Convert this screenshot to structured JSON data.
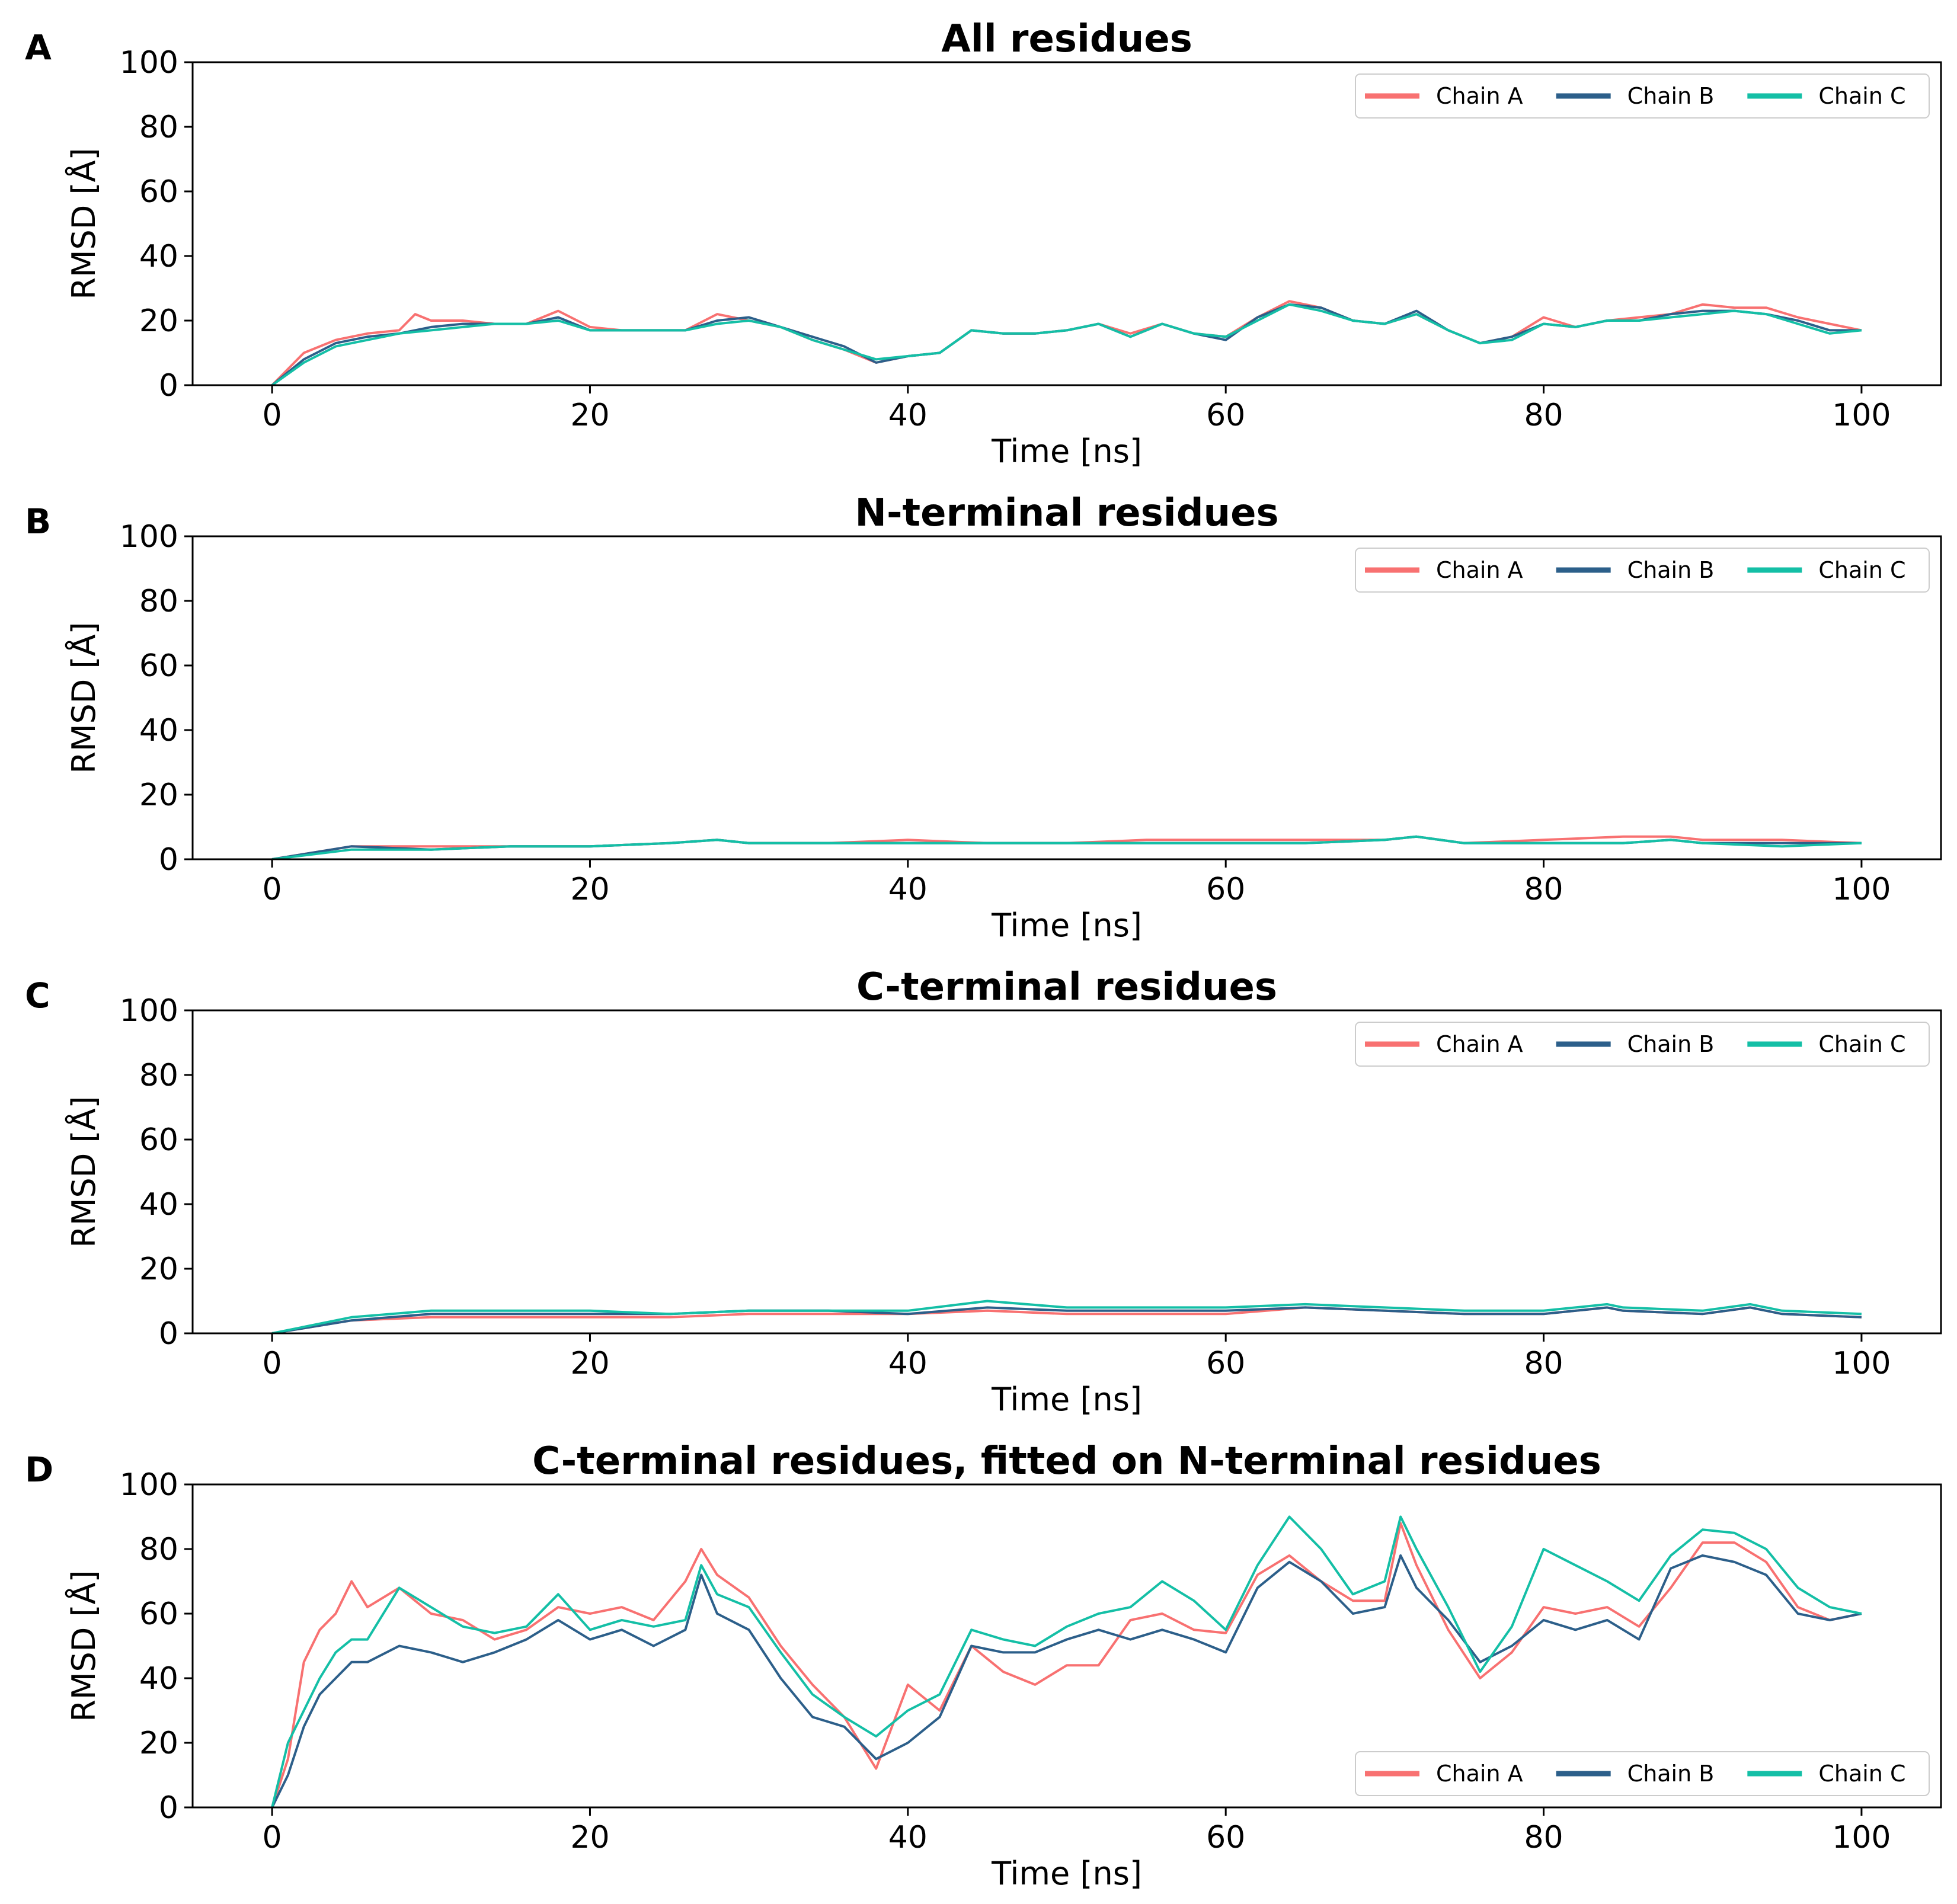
{
  "chart_data": [
    {
      "type": "line",
      "panel_label": "A",
      "title": "All residues",
      "xlabel": "Time [ns]",
      "ylabel": "RMSD [Å]",
      "xlim": [
        -5,
        105
      ],
      "ylim": [
        0,
        100
      ],
      "xticks": [
        "0",
        "20",
        "40",
        "60",
        "80",
        "100"
      ],
      "yticks": [
        "0",
        "20",
        "40",
        "60",
        "80",
        "100"
      ],
      "legend": {
        "position": "top-right",
        "entries": [
          "Chain A",
          "Chain B",
          "Chain C"
        ]
      },
      "series": [
        {
          "name": "Chain A",
          "color": "#F87171",
          "x": [
            0,
            2,
            4,
            6,
            8,
            9,
            10,
            12,
            14,
            16,
            18,
            20,
            22,
            24,
            26,
            28,
            30,
            32,
            34,
            36,
            38,
            40,
            42,
            44,
            46,
            48,
            50,
            52,
            54,
            56,
            58,
            60,
            62,
            64,
            66,
            68,
            70,
            72,
            74,
            76,
            78,
            80,
            82,
            84,
            86,
            88,
            90,
            92,
            94,
            96,
            98,
            100
          ],
          "y": [
            0,
            10,
            14,
            16,
            17,
            22,
            20,
            20,
            19,
            19,
            23,
            18,
            17,
            17,
            17,
            22,
            20,
            18,
            14,
            11,
            7,
            9,
            10,
            17,
            16,
            16,
            17,
            19,
            16,
            19,
            16,
            15,
            21,
            26,
            24,
            20,
            19,
            22,
            17,
            13,
            15,
            21,
            18,
            20,
            21,
            22,
            25,
            24,
            24,
            21,
            19,
            17
          ]
        },
        {
          "name": "Chain B",
          "color": "#2C5F8A",
          "x": [
            0,
            2,
            4,
            6,
            8,
            10,
            12,
            14,
            16,
            18,
            20,
            22,
            24,
            26,
            28,
            30,
            32,
            34,
            36,
            38,
            40,
            42,
            44,
            46,
            48,
            50,
            52,
            54,
            56,
            58,
            60,
            62,
            64,
            66,
            68,
            70,
            72,
            74,
            76,
            78,
            80,
            82,
            84,
            86,
            88,
            90,
            92,
            94,
            96,
            98,
            100
          ],
          "y": [
            0,
            8,
            13,
            15,
            16,
            18,
            19,
            19,
            19,
            21,
            17,
            17,
            17,
            17,
            20,
            21,
            18,
            15,
            12,
            7,
            9,
            10,
            17,
            16,
            16,
            17,
            19,
            15,
            19,
            16,
            14,
            21,
            25,
            24,
            20,
            19,
            23,
            17,
            13,
            15,
            19,
            18,
            20,
            20,
            22,
            23,
            23,
            22,
            20,
            17,
            17
          ]
        },
        {
          "name": "Chain C",
          "color": "#14BFA6",
          "x": [
            0,
            2,
            4,
            6,
            8,
            10,
            12,
            14,
            16,
            18,
            20,
            22,
            24,
            26,
            28,
            30,
            32,
            34,
            36,
            38,
            40,
            42,
            44,
            46,
            48,
            50,
            52,
            54,
            56,
            58,
            60,
            62,
            64,
            66,
            68,
            70,
            72,
            74,
            76,
            78,
            80,
            82,
            84,
            86,
            88,
            90,
            92,
            94,
            96,
            98,
            100
          ],
          "y": [
            0,
            7,
            12,
            14,
            16,
            17,
            18,
            19,
            19,
            20,
            17,
            17,
            17,
            17,
            19,
            20,
            18,
            14,
            11,
            8,
            9,
            10,
            17,
            16,
            16,
            17,
            19,
            15,
            19,
            16,
            15,
            20,
            25,
            23,
            20,
            19,
            22,
            17,
            13,
            14,
            19,
            18,
            20,
            20,
            21,
            22,
            23,
            22,
            19,
            16,
            17
          ]
        }
      ]
    },
    {
      "type": "line",
      "panel_label": "B",
      "title": "N-terminal residues",
      "xlabel": "Time [ns]",
      "ylabel": "RMSD [Å]",
      "xlim": [
        -5,
        105
      ],
      "ylim": [
        0,
        100
      ],
      "xticks": [
        "0",
        "20",
        "40",
        "60",
        "80",
        "100"
      ],
      "yticks": [
        "0",
        "20",
        "40",
        "60",
        "80",
        "100"
      ],
      "legend": {
        "position": "top-right",
        "entries": [
          "Chain A",
          "Chain B",
          "Chain C"
        ]
      },
      "series": [
        {
          "name": "Chain A",
          "color": "#F87171",
          "x": [
            0,
            5,
            10,
            15,
            20,
            25,
            28,
            30,
            35,
            40,
            45,
            50,
            55,
            60,
            65,
            70,
            72,
            75,
            80,
            85,
            88,
            90,
            95,
            100
          ],
          "y": [
            0,
            4,
            4,
            4,
            4,
            5,
            6,
            5,
            5,
            6,
            5,
            5,
            6,
            6,
            6,
            6,
            7,
            5,
            6,
            7,
            7,
            6,
            6,
            5
          ]
        },
        {
          "name": "Chain B",
          "color": "#2C5F8A",
          "x": [
            0,
            5,
            10,
            15,
            20,
            25,
            28,
            30,
            35,
            40,
            45,
            50,
            55,
            60,
            65,
            70,
            72,
            75,
            80,
            85,
            88,
            90,
            95,
            100
          ],
          "y": [
            0,
            4,
            3,
            4,
            4,
            5,
            6,
            5,
            5,
            5,
            5,
            5,
            5,
            5,
            5,
            6,
            7,
            5,
            5,
            5,
            6,
            5,
            5,
            5
          ]
        },
        {
          "name": "Chain C",
          "color": "#14BFA6",
          "x": [
            0,
            5,
            10,
            15,
            20,
            25,
            28,
            30,
            35,
            40,
            45,
            50,
            55,
            60,
            65,
            70,
            72,
            75,
            80,
            85,
            88,
            90,
            95,
            100
          ],
          "y": [
            0,
            3,
            3,
            4,
            4,
            5,
            6,
            5,
            5,
            5,
            5,
            5,
            5,
            5,
            5,
            6,
            7,
            5,
            5,
            5,
            6,
            5,
            4,
            5
          ]
        }
      ]
    },
    {
      "type": "line",
      "panel_label": "C",
      "title": "C-terminal residues",
      "xlabel": "Time [ns]",
      "ylabel": "RMSD [Å]",
      "xlim": [
        -5,
        105
      ],
      "ylim": [
        0,
        100
      ],
      "xticks": [
        "0",
        "20",
        "40",
        "60",
        "80",
        "100"
      ],
      "yticks": [
        "0",
        "20",
        "40",
        "60",
        "80",
        "100"
      ],
      "legend": {
        "position": "top-right",
        "entries": [
          "Chain A",
          "Chain B",
          "Chain C"
        ]
      },
      "series": [
        {
          "name": "Chain A",
          "color": "#F87171",
          "x": [
            0,
            5,
            10,
            15,
            20,
            25,
            30,
            35,
            40,
            45,
            50,
            55,
            60,
            65,
            70,
            75,
            80,
            84,
            85,
            90,
            93,
            95,
            100
          ],
          "y": [
            0,
            4,
            5,
            5,
            5,
            5,
            6,
            6,
            6,
            7,
            6,
            6,
            6,
            8,
            7,
            6,
            6,
            8,
            7,
            6,
            8,
            6,
            5
          ]
        },
        {
          "name": "Chain B",
          "color": "#2C5F8A",
          "x": [
            0,
            5,
            10,
            15,
            20,
            25,
            30,
            35,
            40,
            45,
            50,
            55,
            60,
            65,
            70,
            75,
            80,
            84,
            85,
            90,
            93,
            95,
            100
          ],
          "y": [
            0,
            4,
            6,
            6,
            6,
            6,
            7,
            7,
            6,
            8,
            7,
            7,
            7,
            8,
            7,
            6,
            6,
            8,
            7,
            6,
            8,
            6,
            5
          ]
        },
        {
          "name": "Chain C",
          "color": "#14BFA6",
          "x": [
            0,
            5,
            10,
            15,
            20,
            25,
            30,
            35,
            40,
            45,
            50,
            55,
            60,
            65,
            70,
            75,
            80,
            84,
            85,
            90,
            93,
            95,
            100
          ],
          "y": [
            0,
            5,
            7,
            7,
            7,
            6,
            7,
            7,
            7,
            10,
            8,
            8,
            8,
            9,
            8,
            7,
            7,
            9,
            8,
            7,
            9,
            7,
            6
          ]
        }
      ]
    },
    {
      "type": "line",
      "panel_label": "D",
      "title": "C-terminal residues, fitted on N-terminal residues",
      "xlabel": "Time [ns]",
      "ylabel": "RMSD [Å]",
      "xlim": [
        -5,
        105
      ],
      "ylim": [
        0,
        100
      ],
      "xticks": [
        "0",
        "20",
        "40",
        "60",
        "80",
        "100"
      ],
      "yticks": [
        "0",
        "20",
        "40",
        "60",
        "80",
        "100"
      ],
      "legend": {
        "position": "bottom-right",
        "entries": [
          "Chain A",
          "Chain B",
          "Chain C"
        ]
      },
      "series": [
        {
          "name": "Chain A",
          "color": "#F87171",
          "x": [
            0,
            1,
            2,
            3,
            4,
            5,
            6,
            8,
            10,
            12,
            14,
            16,
            18,
            20,
            22,
            24,
            26,
            27,
            28,
            30,
            32,
            34,
            36,
            38,
            40,
            42,
            44,
            46,
            48,
            50,
            52,
            54,
            56,
            58,
            60,
            62,
            64,
            66,
            68,
            70,
            71,
            72,
            74,
            76,
            78,
            80,
            82,
            84,
            86,
            88,
            90,
            92,
            94,
            96,
            98,
            100
          ],
          "y": [
            0,
            15,
            45,
            55,
            60,
            70,
            62,
            68,
            60,
            58,
            52,
            55,
            62,
            60,
            62,
            58,
            70,
            80,
            72,
            65,
            50,
            38,
            28,
            12,
            38,
            30,
            50,
            42,
            38,
            44,
            44,
            58,
            60,
            55,
            54,
            72,
            78,
            70,
            64,
            64,
            88,
            75,
            55,
            40,
            48,
            62,
            60,
            62,
            56,
            68,
            82,
            82,
            76,
            62,
            58,
            60
          ]
        },
        {
          "name": "Chain B",
          "color": "#2C5F8A",
          "x": [
            0,
            1,
            2,
            3,
            4,
            5,
            6,
            8,
            10,
            12,
            14,
            16,
            18,
            20,
            22,
            24,
            26,
            27,
            28,
            30,
            32,
            34,
            36,
            38,
            40,
            42,
            44,
            46,
            48,
            50,
            52,
            54,
            56,
            58,
            60,
            62,
            64,
            66,
            68,
            70,
            71,
            72,
            74,
            76,
            78,
            80,
            82,
            84,
            86,
            88,
            90,
            92,
            94,
            96,
            98,
            100
          ],
          "y": [
            0,
            10,
            25,
            35,
            40,
            45,
            45,
            50,
            48,
            45,
            48,
            52,
            58,
            52,
            55,
            50,
            55,
            72,
            60,
            55,
            40,
            28,
            25,
            15,
            20,
            28,
            50,
            48,
            48,
            52,
            55,
            52,
            55,
            52,
            48,
            68,
            76,
            70,
            60,
            62,
            78,
            68,
            58,
            45,
            50,
            58,
            55,
            58,
            52,
            74,
            78,
            76,
            72,
            60,
            58,
            60
          ]
        },
        {
          "name": "Chain C",
          "color": "#14BFA6",
          "x": [
            0,
            1,
            2,
            3,
            4,
            5,
            6,
            8,
            10,
            12,
            14,
            16,
            18,
            20,
            22,
            24,
            26,
            27,
            28,
            30,
            32,
            34,
            36,
            38,
            40,
            42,
            44,
            46,
            48,
            50,
            52,
            54,
            56,
            58,
            60,
            62,
            64,
            66,
            68,
            70,
            71,
            72,
            74,
            76,
            78,
            80,
            82,
            84,
            86,
            88,
            90,
            92,
            94,
            96,
            98,
            100
          ],
          "y": [
            0,
            20,
            30,
            40,
            48,
            52,
            52,
            68,
            62,
            56,
            54,
            56,
            66,
            55,
            58,
            56,
            58,
            75,
            66,
            62,
            48,
            35,
            28,
            22,
            30,
            35,
            55,
            52,
            50,
            56,
            60,
            62,
            70,
            64,
            55,
            75,
            90,
            80,
            66,
            70,
            90,
            80,
            62,
            42,
            56,
            80,
            75,
            70,
            64,
            78,
            86,
            85,
            80,
            68,
            62,
            60
          ]
        }
      ]
    }
  ]
}
